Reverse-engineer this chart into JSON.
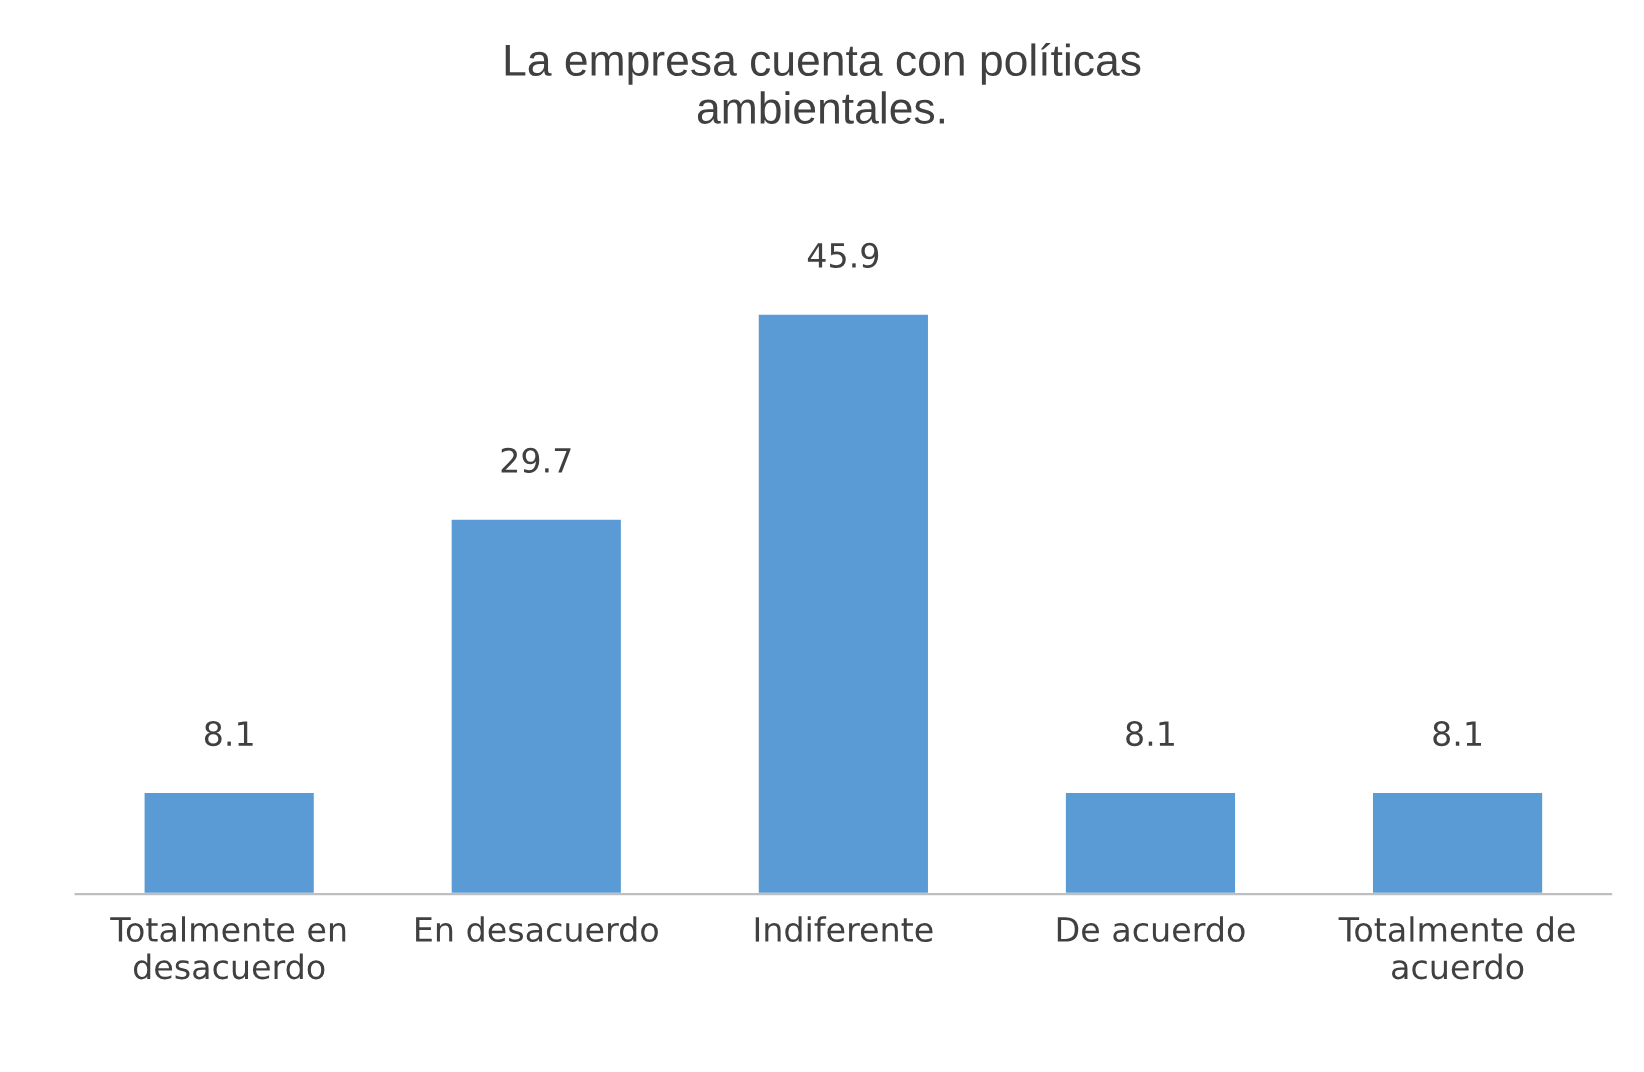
{
  "chart_data": {
    "type": "bar",
    "title": "La empresa cuenta con políticas\nambientales.",
    "categories": [
      "Totalmente en\ndesacuerdo",
      "En desacuerdo",
      "Indiferente",
      "De acuerdo",
      "Totalmente de\nacuerdo"
    ],
    "values": [
      8.1,
      29.7,
      45.9,
      8.1,
      8.1
    ],
    "color": "#5b9bd5",
    "data_labels": true,
    "grid": false,
    "legend": false
  }
}
